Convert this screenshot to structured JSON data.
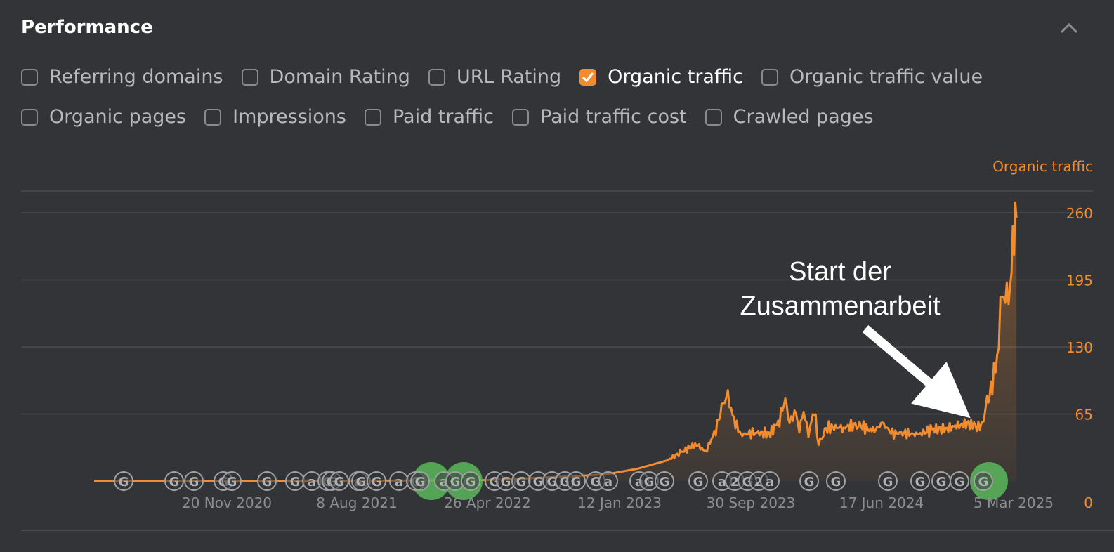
{
  "panel": {
    "title": "Performance"
  },
  "metrics_row1": [
    {
      "label": "Referring domains",
      "checked": false
    },
    {
      "label": "Domain Rating",
      "checked": false
    },
    {
      "label": "URL Rating",
      "checked": false
    },
    {
      "label": "Organic traffic",
      "checked": true
    },
    {
      "label": "Organic traffic value",
      "checked": false
    }
  ],
  "metrics_row2": [
    {
      "label": "Organic pages",
      "checked": false
    },
    {
      "label": "Impressions",
      "checked": false
    },
    {
      "label": "Paid traffic",
      "checked": false
    },
    {
      "label": "Paid traffic cost",
      "checked": false
    },
    {
      "label": "Crawled pages",
      "checked": false
    }
  ],
  "colors": {
    "accent": "#f28c2e",
    "background": "#333437",
    "grid": "#4b4c50",
    "marker_green": "#5cb85c"
  },
  "annotation": {
    "line1": "Start der",
    "line2": "Zusammenarbeit"
  },
  "chart_data": {
    "type": "area",
    "series": [
      {
        "name": "Organic traffic"
      }
    ],
    "ylim": [
      0,
      260
    ],
    "y_ticks": [
      "0",
      "65",
      "130",
      "195",
      "260"
    ],
    "x_tick_labels": [
      "20 Nov 2020",
      "8 Aug 2021",
      "26 Apr 2022",
      "12 Jan 2023",
      "30 Sep 2023",
      "17 Jun 2024",
      "5 Mar 2025"
    ],
    "grid": true,
    "legend": "top-right",
    "points": [
      [
        "2020-03-01",
        0
      ],
      [
        "2021-06-01",
        0
      ],
      [
        "2022-06-01",
        1
      ],
      [
        "2022-09-01",
        3
      ],
      [
        "2022-12-01",
        5
      ],
      [
        "2023-02-01",
        7
      ],
      [
        "2023-04-01",
        12
      ],
      [
        "2023-06-01",
        20
      ],
      [
        "2023-07-01",
        28
      ],
      [
        "2023-08-01",
        36
      ],
      [
        "2023-08-20",
        28
      ],
      [
        "2023-09-10",
        50
      ],
      [
        "2023-09-25",
        75
      ],
      [
        "2023-10-05",
        83
      ],
      [
        "2023-10-15",
        62
      ],
      [
        "2023-11-01",
        45
      ],
      [
        "2023-12-01",
        47
      ],
      [
        "2024-01-01",
        46
      ],
      [
        "2024-01-20",
        60
      ],
      [
        "2024-02-01",
        80
      ],
      [
        "2024-02-10",
        55
      ],
      [
        "2024-02-20",
        70
      ],
      [
        "2024-03-01",
        50
      ],
      [
        "2024-03-10",
        68
      ],
      [
        "2024-03-20",
        45
      ],
      [
        "2024-04-01",
        70
      ],
      [
        "2024-04-10",
        35
      ],
      [
        "2024-04-20",
        48
      ],
      [
        "2024-05-01",
        52
      ],
      [
        "2024-06-01",
        52
      ],
      [
        "2024-07-01",
        55
      ],
      [
        "2024-08-01",
        48
      ],
      [
        "2024-08-20",
        56
      ],
      [
        "2024-09-10",
        46
      ],
      [
        "2024-10-01",
        47
      ],
      [
        "2024-11-01",
        45
      ],
      [
        "2024-12-01",
        50
      ],
      [
        "2025-01-01",
        51
      ],
      [
        "2025-02-01",
        55
      ],
      [
        "2025-02-20",
        56
      ],
      [
        "2025-03-01",
        53
      ],
      [
        "2025-03-10",
        52
      ],
      [
        "2025-03-18",
        60
      ],
      [
        "2025-03-25",
        75
      ],
      [
        "2025-04-05",
        95
      ],
      [
        "2025-04-15",
        120
      ],
      [
        "2025-04-25",
        180
      ],
      [
        "2025-05-05",
        175
      ],
      [
        "2025-05-12",
        195
      ],
      [
        "2025-05-20",
        240
      ],
      [
        "2025-05-25",
        255
      ]
    ],
    "event_markers": [
      "G",
      "G",
      "G",
      "G",
      "G",
      "G",
      "G",
      "a",
      "G",
      "G",
      "G",
      "a",
      "G",
      "G",
      "a",
      "G",
      "G",
      "a",
      "G",
      "G",
      "G",
      "G",
      "G",
      "G",
      "G",
      "G",
      "G",
      "G",
      "a",
      "a",
      "G",
      "G",
      "G",
      "a",
      "2",
      "G",
      "2",
      "a",
      "G",
      "G"
    ]
  }
}
